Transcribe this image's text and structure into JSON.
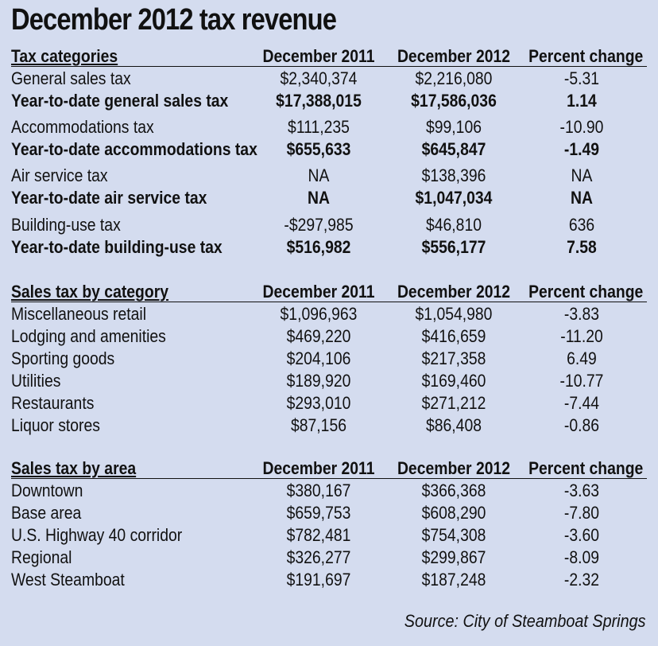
{
  "title": "December 2012 tax revenue",
  "sections": [
    {
      "header": [
        "Tax categories",
        "December 2011",
        "December 2012",
        "Percent change"
      ],
      "rows": [
        [
          "General sales tax",
          "$2,340,374",
          "$2,216,080",
          "-5.31"
        ],
        [
          "Year-to-date general sales tax",
          "$17,388,015",
          "$17,586,036",
          "1.14"
        ],
        [
          "Accommodations tax",
          "$111,235",
          "$99,106",
          "-10.90"
        ],
        [
          "Year-to-date accommodations tax",
          "$655,633",
          "$645,847",
          "-1.49"
        ],
        [
          "Air service tax",
          "NA",
          "$138,396",
          "NA"
        ],
        [
          "Year-to-date air service tax",
          "NA",
          "$1,047,034",
          "NA"
        ],
        [
          "Building-use tax",
          "-$297,985",
          "$46,810",
          "636"
        ],
        [
          "Year-to-date building-use tax",
          "$516,982",
          "$556,177",
          "7.58"
        ]
      ]
    },
    {
      "header": [
        "Sales tax by category",
        "December 2011",
        "December 2012",
        "Percent change"
      ],
      "rows": [
        [
          "Miscellaneous retail",
          "$1,096,963",
          "$1,054,980",
          "-3.83"
        ],
        [
          "Lodging and amenities",
          "$469,220",
          "$416,659",
          "-11.20"
        ],
        [
          "Sporting goods",
          "$204,106",
          "$217,358",
          "6.49"
        ],
        [
          "Utilities",
          "$189,920",
          "$169,460",
          "-10.77"
        ],
        [
          "Restaurants",
          "$293,010",
          "$271,212",
          "-7.44"
        ],
        [
          "Liquor stores",
          "$87,156",
          "$86,408",
          "-0.86"
        ]
      ]
    },
    {
      "header": [
        "Sales tax by area",
        "December 2011",
        "December 2012",
        "Percent change"
      ],
      "rows": [
        [
          "Downtown",
          "$380,167",
          "$366,368",
          "-3.63"
        ],
        [
          "Base area",
          "$659,753",
          "$608,290",
          "-7.80"
        ],
        [
          "U.S. Highway 40 corridor",
          "$782,481",
          "$754,308",
          "-3.60"
        ],
        [
          "Regional",
          "$326,277",
          "$299,867",
          "-8.09"
        ],
        [
          "West Steamboat",
          "$191,697",
          "$187,248",
          "-2.32"
        ]
      ]
    }
  ],
  "source": "Source: City of Steamboat Springs"
}
